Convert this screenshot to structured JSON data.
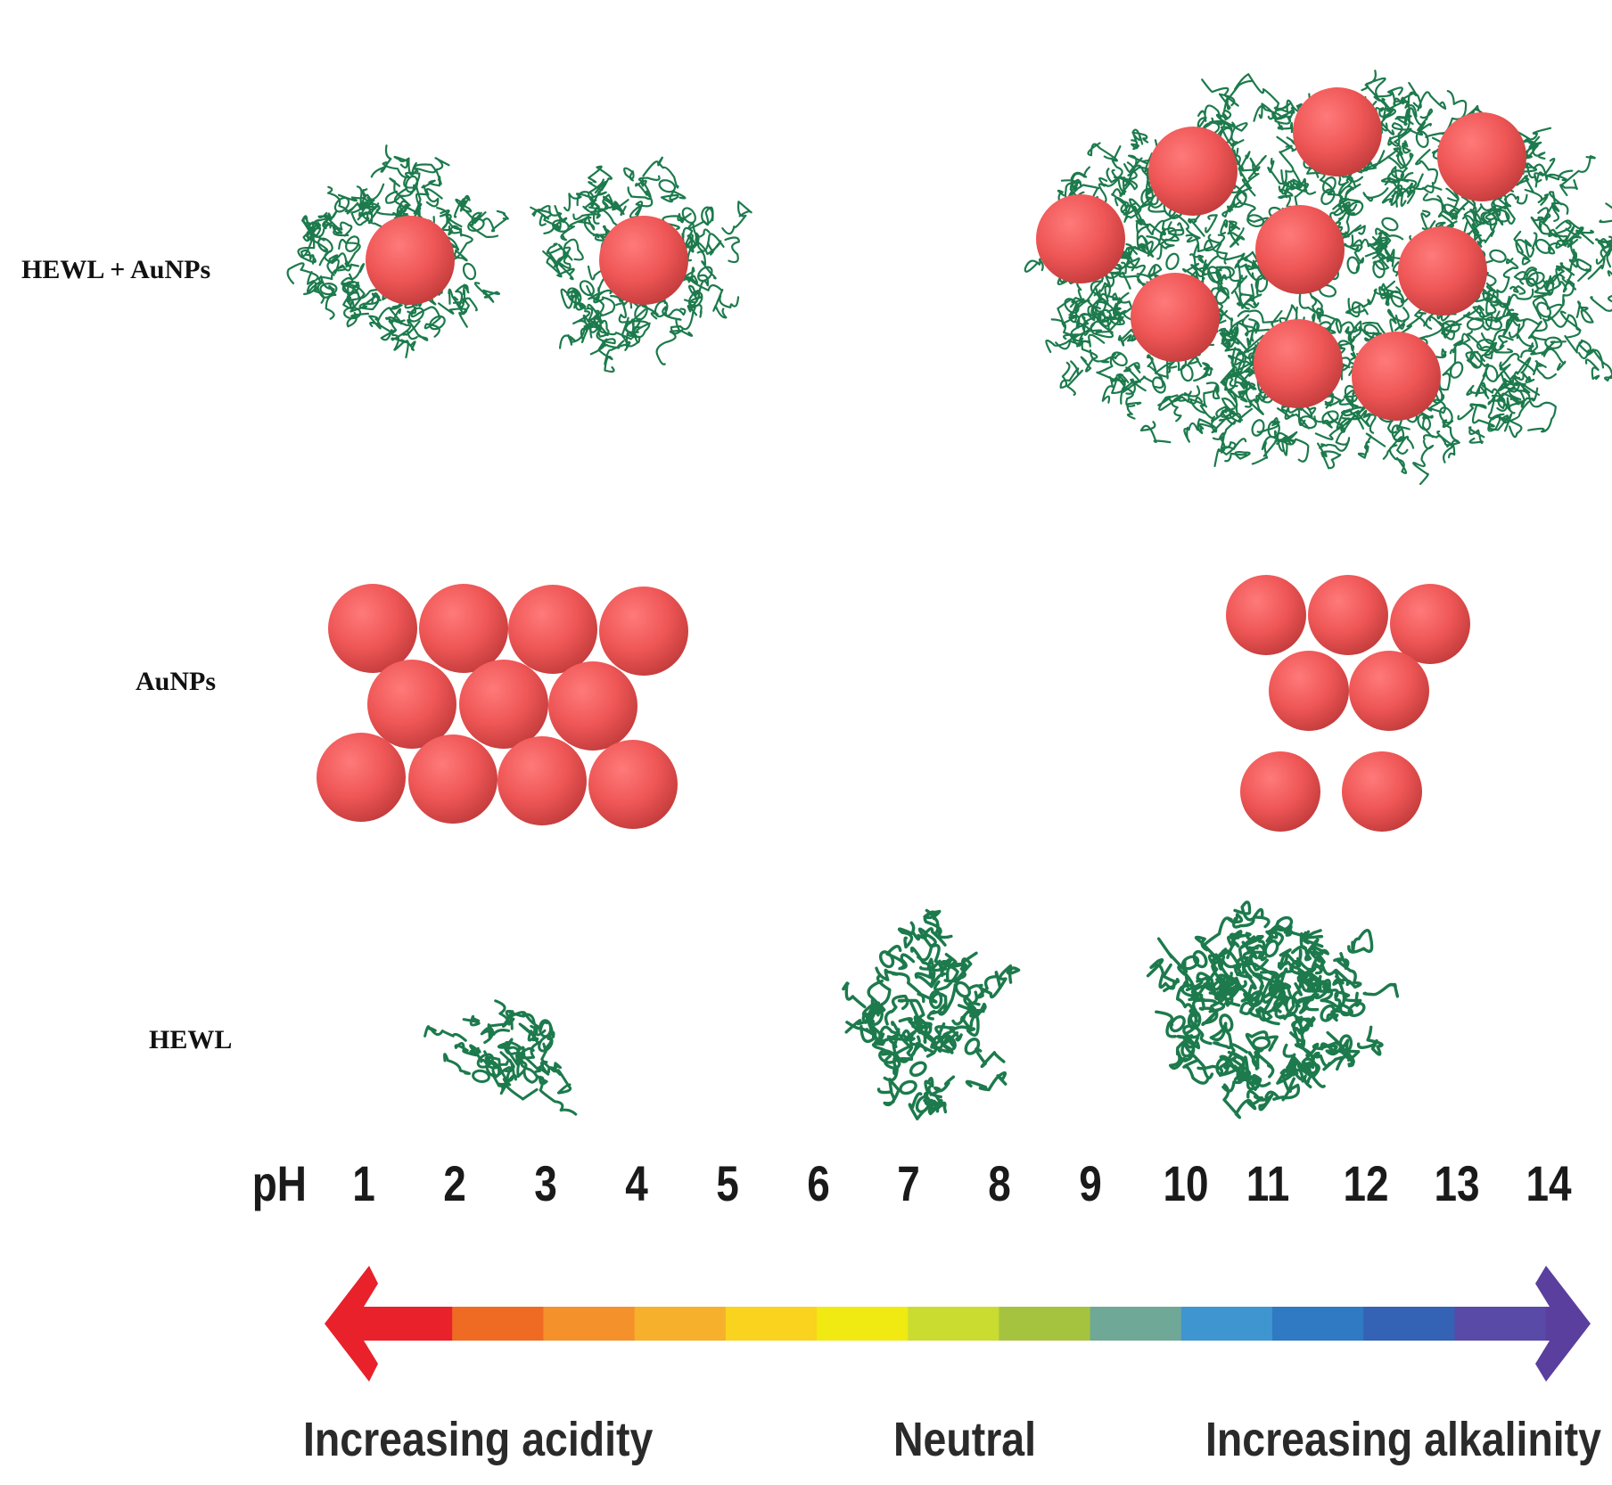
{
  "rows": {
    "hewl_aunps": "HEWL + AuNPs",
    "aunps": "AuNPs",
    "hewl": "HEWL"
  },
  "ph_scale": {
    "prefix": "pH",
    "ticks": [
      "1",
      "2",
      "3",
      "4",
      "5",
      "6",
      "7",
      "8",
      "9",
      "10",
      "11",
      "12",
      "13",
      "14"
    ],
    "segment_colors": [
      "#e8212a",
      "#ef6b23",
      "#f4912b",
      "#f6b02c",
      "#f9d31d",
      "#f0ea12",
      "#c9dc2f",
      "#a6c340",
      "#6fa896",
      "#3f95cf",
      "#2f7ac2",
      "#3462b4",
      "#5a4aa8",
      "#5a3f9e"
    ],
    "captions": {
      "left": "Increasing acidity",
      "center": "Neutral",
      "right": "Increasing alkalinity"
    }
  },
  "colors": {
    "nanoparticle": "#ef5b5b",
    "protein": "#1c7a4c"
  },
  "icons": {
    "nanoparticle": "gold-nanoparticle-sphere",
    "protein": "lysozyme-ribbon"
  }
}
